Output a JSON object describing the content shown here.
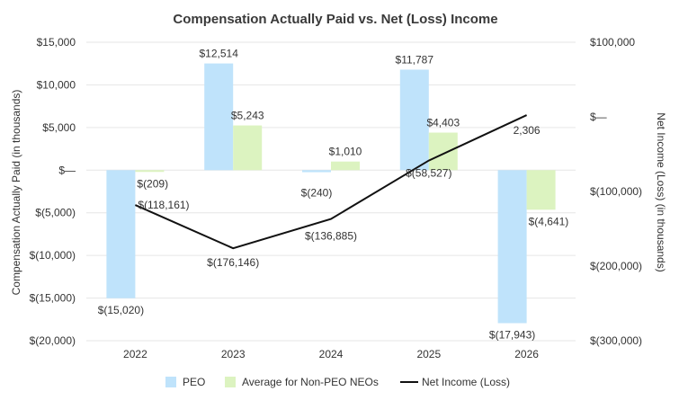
{
  "chart_data": {
    "type": "bar",
    "title": "Compensation Actually Paid vs. Net (Loss) Income",
    "categories": [
      "2022",
      "2023",
      "2024",
      "2025",
      "2026"
    ],
    "ylabel": "Compensation Actually Paid (in thousands)",
    "y2label": "Net Income (Loss) (in thousands)",
    "ylim": [
      -20000,
      15000
    ],
    "y2lim": [
      -300000,
      100000
    ],
    "yticks": [
      {
        "value": 15000,
        "label": "$15,000"
      },
      {
        "value": 10000,
        "label": "$10,000"
      },
      {
        "value": 5000,
        "label": "$5,000"
      },
      {
        "value": 0,
        "label": "$—"
      },
      {
        "value": -5000,
        "label": "$(5,000)"
      },
      {
        "value": -10000,
        "label": "$(10,000)"
      },
      {
        "value": -15000,
        "label": "$(15,000)"
      },
      {
        "value": -20000,
        "label": "$(20,000)"
      }
    ],
    "y2ticks": [
      {
        "value": 100000,
        "label": "$100,000"
      },
      {
        "value": 0,
        "label": "$—"
      },
      {
        "value": -100000,
        "label": "$(100,000)"
      },
      {
        "value": -200000,
        "label": "$(200,000)"
      },
      {
        "value": -300000,
        "label": "$(300,000)"
      }
    ],
    "grid": true,
    "legend_position": "bottom",
    "series": [
      {
        "name": "PEO",
        "kind": "bar",
        "axis": "left",
        "color": "#bfe3fb",
        "values": [
          -15020,
          12514,
          -240,
          11787,
          -17943
        ],
        "labels": [
          "$(15,020)",
          "$12,514",
          "$(240)",
          "$11,787",
          "$(17,943)"
        ]
      },
      {
        "name": "Average for Non-PEO NEOs",
        "kind": "bar",
        "axis": "left",
        "color": "#dcf3c0",
        "values": [
          -209,
          5243,
          1010,
          4403,
          -4641
        ],
        "labels": [
          "$(209)",
          "$5,243",
          "$1,010",
          "$4,403",
          "$(4,641)"
        ]
      },
      {
        "name": "Net Income (Loss)",
        "kind": "line",
        "axis": "right",
        "color": "#111111",
        "values": [
          -118161,
          -176146,
          -136885,
          -58527,
          2306
        ],
        "labels": [
          "$(118,161)",
          "$(176,146)",
          "$(136,885)",
          "$(58,527)",
          "2,306"
        ]
      }
    ]
  }
}
